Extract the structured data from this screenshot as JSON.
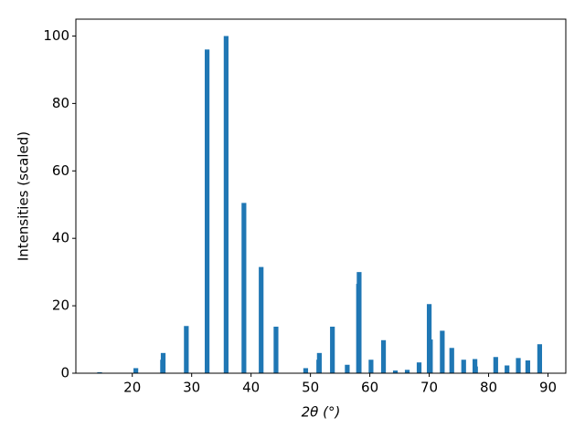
{
  "chart_data": {
    "type": "bar",
    "x": [
      14.5,
      20.6,
      25.1,
      25.2,
      29.1,
      32.6,
      35.8,
      38.8,
      41.7,
      44.2,
      49.2,
      51.4,
      51.5,
      53.7,
      56.2,
      58.1,
      58.2,
      60.2,
      62.3,
      64.3,
      66.3,
      68.3,
      70.0,
      70.2,
      72.2,
      73.8,
      75.8,
      77.7,
      77.8,
      81.2,
      83.1,
      85.0,
      86.6,
      88.6
    ],
    "values": [
      0.3,
      1.5,
      4,
      6,
      14,
      96,
      100,
      50.5,
      31.5,
      13.8,
      1.5,
      4,
      6,
      13.8,
      2.5,
      26.5,
      30,
      4,
      9.8,
      0.8,
      1,
      3.2,
      20.5,
      10,
      12.6,
      7.5,
      4,
      4.2,
      2,
      4.8,
      2.3,
      4.5,
      3.8,
      8.6
    ],
    "color": "#1f77b4",
    "xlabel": "2θ (°)",
    "ylabel": "Intensities (scaled)",
    "xlim": [
      10.5,
      93
    ],
    "ylim": [
      0,
      105
    ],
    "xticks": [
      20,
      30,
      40,
      50,
      60,
      70,
      80,
      90
    ],
    "yticks": [
      0,
      20,
      40,
      60,
      80,
      100
    ]
  }
}
